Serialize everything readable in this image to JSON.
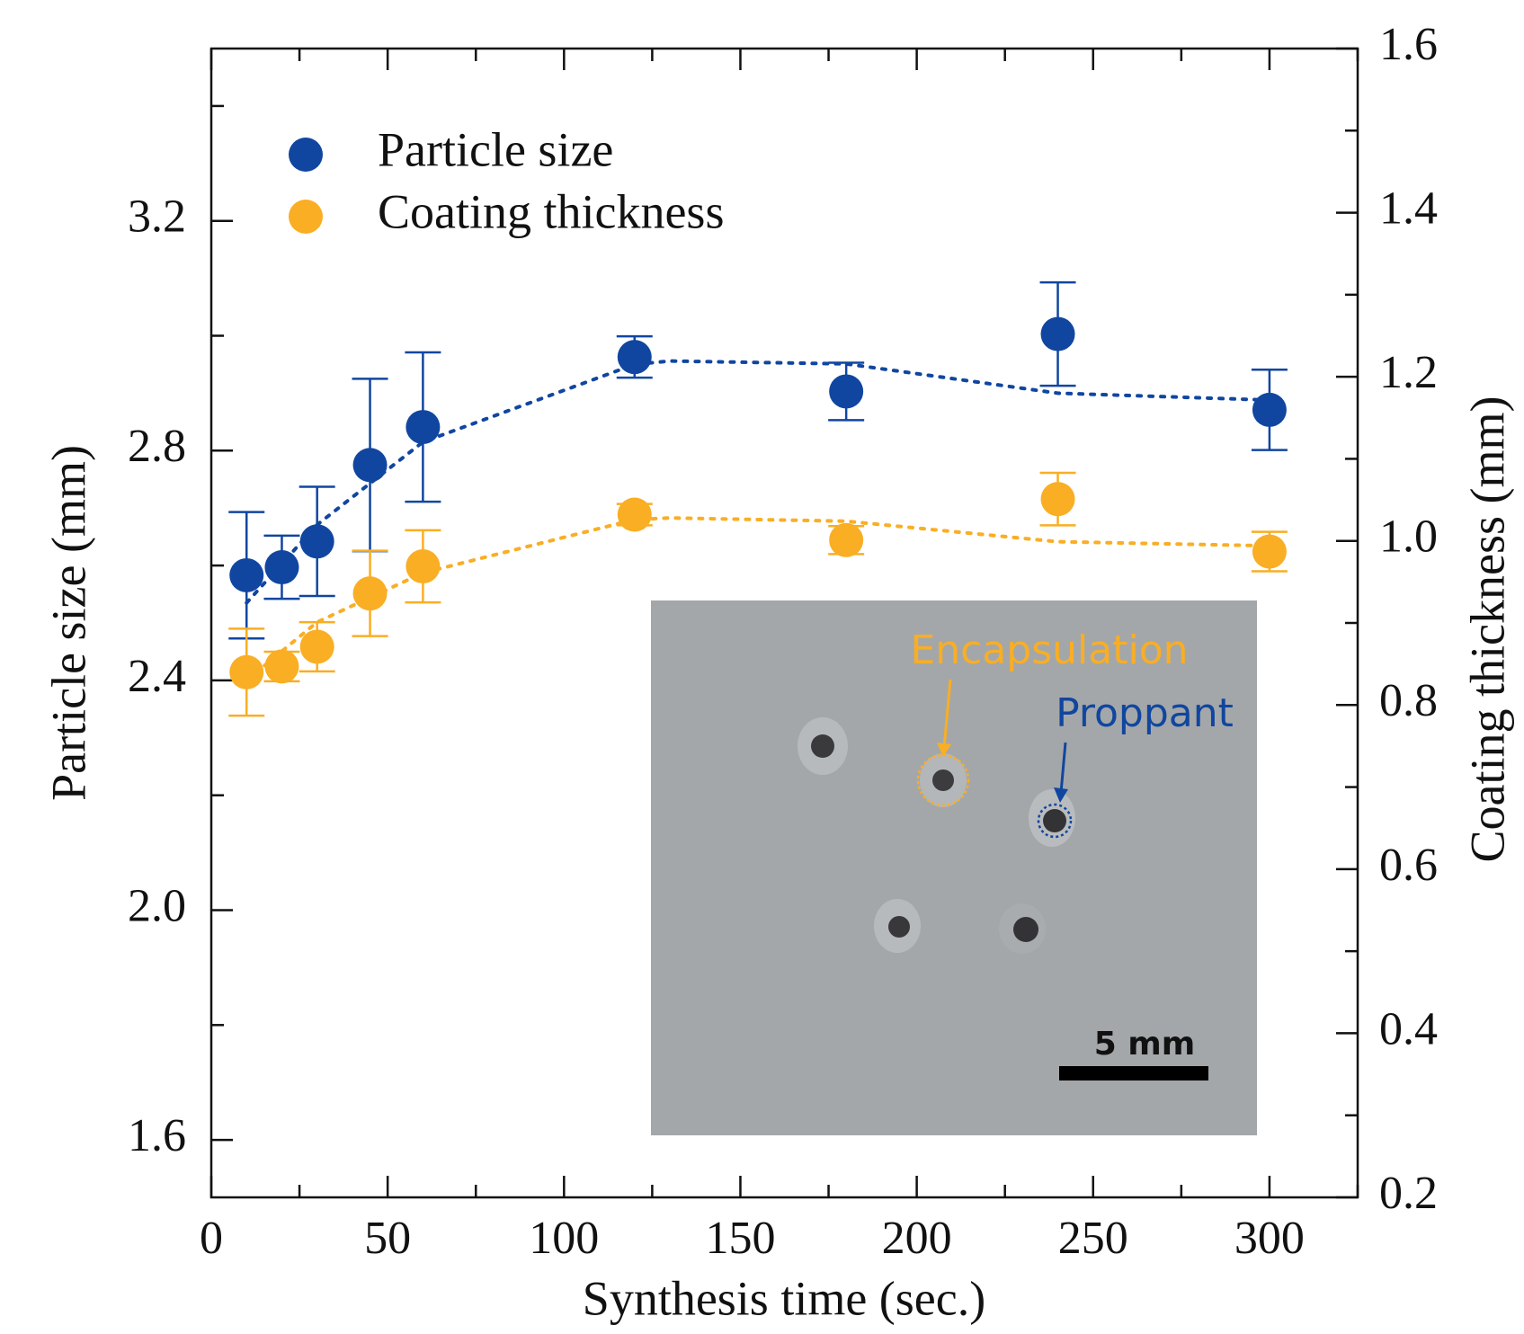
{
  "chart_data": {
    "type": "scatter",
    "xlabel": "Synthesis time (sec.)",
    "ylabel": "Particle size (mm)",
    "y2label": "Coating thickness (mm)",
    "x": [
      10,
      20,
      30,
      45,
      60,
      120,
      180,
      240,
      300
    ],
    "series": [
      {
        "name": "Particle size",
        "color": "#1046a0",
        "axis": "y",
        "values": [
          2.583,
          2.597,
          2.642,
          2.775,
          2.841,
          2.963,
          2.903,
          3.003,
          2.871
        ],
        "errors": [
          0.11,
          0.055,
          0.095,
          0.15,
          0.13,
          0.036,
          0.05,
          0.09,
          0.07
        ]
      },
      {
        "name": "Coating thickness",
        "color": "#f9ae24",
        "axis": "y2",
        "values": [
          0.84,
          0.847,
          0.871,
          0.936,
          0.969,
          1.032,
          1.001,
          1.051,
          0.987
        ],
        "errors": [
          0.053,
          0.018,
          0.03,
          0.052,
          0.044,
          0.013,
          0.017,
          0.032,
          0.024
        ]
      }
    ],
    "trend_lines": [
      {
        "color": "#1046a0",
        "axis": "y",
        "x": [
          10,
          30,
          60,
          120,
          130,
          180,
          240,
          300
        ],
        "values": [
          2.535,
          2.671,
          2.815,
          2.95,
          2.956,
          2.951,
          2.9,
          2.888
        ]
      },
      {
        "color": "#f9ae24",
        "axis": "y2",
        "x": [
          10,
          30,
          60,
          120,
          130,
          180,
          240,
          300
        ],
        "values": [
          0.83,
          0.901,
          0.961,
          1.026,
          1.028,
          1.024,
          0.999,
          0.994
        ]
      }
    ],
    "xlim": [
      0,
      325
    ],
    "xticks": [
      0,
      50,
      100,
      150,
      200,
      250,
      300
    ],
    "xminor": [
      25,
      75,
      125,
      175,
      225,
      275,
      325
    ],
    "ylim": [
      1.5,
      3.5
    ],
    "yticks": [
      1.6,
      {
        "value": 2.0,
        "label": "2.0"
      },
      2.4,
      2.8,
      3.2
    ],
    "yminor": [
      1.8,
      2.2,
      2.6,
      3.0,
      3.4
    ],
    "y2lim": [
      0.2,
      1.6
    ],
    "y2ticks": [
      0.2,
      0.4,
      0.6,
      0.8,
      {
        "value": 1.0,
        "label": "1.0"
      },
      1.2,
      1.4,
      1.6
    ],
    "y2minor": [
      0.3,
      0.5,
      0.7,
      0.9,
      1.1,
      1.3,
      1.5
    ],
    "legend": "upper left",
    "inset": {
      "labels": [
        "Encapsulation",
        "Proppant"
      ],
      "scale_label": "5 mm"
    }
  }
}
